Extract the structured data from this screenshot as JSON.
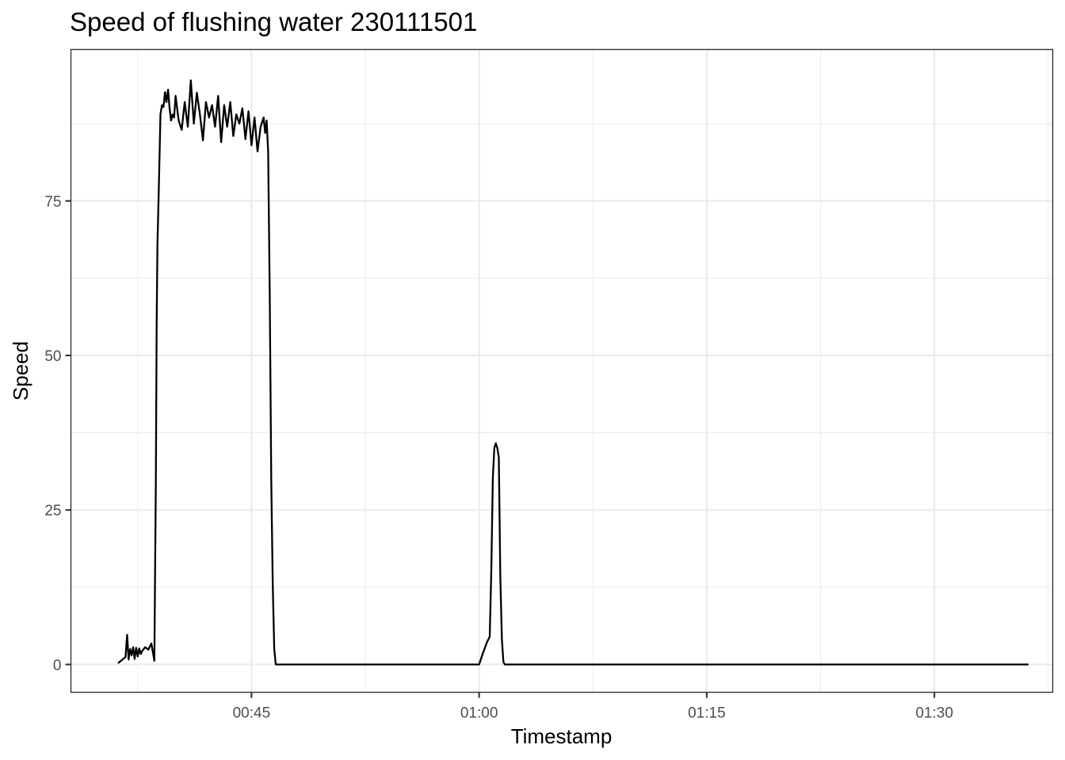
{
  "chart_data": {
    "type": "line",
    "title": "Speed of flushing water 230111501",
    "xlabel": "Timestamp",
    "ylabel": "Speed",
    "x_unit": "minutes since 00:00",
    "x_ticks": [
      {
        "value": 45,
        "label": "00:45"
      },
      {
        "value": 60,
        "label": "01:00"
      },
      {
        "value": 75,
        "label": "01:15"
      },
      {
        "value": 90,
        "label": "01:30"
      }
    ],
    "y_ticks": [
      {
        "value": 0,
        "label": "0"
      },
      {
        "value": 25,
        "label": "25"
      },
      {
        "value": 50,
        "label": "50"
      },
      {
        "value": 75,
        "label": "75"
      }
    ],
    "xlim": [
      33.1,
      97.8
    ],
    "ylim": [
      -4.5,
      99.5
    ],
    "grid": true,
    "legend": "none",
    "line_color": "#000000",
    "series": [
      {
        "x": [
          36.2,
          36.5,
          36.7,
          36.8,
          36.9,
          37.0,
          37.1,
          37.2,
          37.3,
          37.4,
          37.5,
          37.6,
          37.7,
          37.8,
          38.0,
          38.2,
          38.4,
          38.6,
          38.7,
          38.75,
          38.8,
          38.9,
          39.0,
          39.1,
          39.2,
          39.3,
          39.4,
          39.5,
          39.6,
          39.7,
          39.8,
          39.9,
          40.0,
          40.2,
          40.4,
          40.6,
          40.8,
          41.0,
          41.2,
          41.4,
          41.6,
          41.8,
          42.0,
          42.2,
          42.4,
          42.6,
          42.8,
          43.0,
          43.2,
          43.4,
          43.6,
          43.8,
          44.0,
          44.2,
          44.4,
          44.6,
          44.8,
          45.0,
          45.2,
          45.4,
          45.6,
          45.8,
          45.9,
          46.0,
          46.1,
          46.2,
          46.3,
          46.4,
          46.5,
          46.6,
          50.0,
          55.0,
          60.0,
          60.2,
          60.5,
          60.7,
          60.8,
          60.9,
          61.0,
          61.1,
          61.2,
          61.3,
          61.4,
          61.5,
          61.6,
          61.7,
          65.0,
          70.0,
          75.0,
          80.0,
          85.0,
          90.0,
          95.0,
          96.2
        ],
        "values": [
          0.2,
          0.8,
          1.2,
          4.8,
          0.8,
          2.5,
          1.5,
          2.8,
          0.9,
          2.7,
          1.3,
          2.6,
          1.7,
          2.2,
          2.8,
          2.4,
          3.4,
          0.6,
          30.0,
          55.0,
          68.0,
          78.0,
          89.0,
          90.5,
          90.2,
          92.6,
          91.0,
          93.0,
          90.0,
          88.0,
          89.0,
          88.5,
          92.0,
          88.0,
          86.5,
          91.0,
          87.0,
          94.5,
          87.5,
          92.5,
          89.0,
          84.8,
          91.0,
          88.5,
          90.5,
          87.0,
          92.0,
          84.5,
          90.5,
          87.0,
          91.0,
          85.5,
          89.0,
          87.5,
          90.0,
          85.0,
          89.5,
          84.0,
          88.5,
          83.0,
          87.0,
          88.5,
          86.0,
          88.0,
          83.0,
          60.0,
          30.0,
          13.0,
          2.5,
          0.0,
          0.0,
          0.0,
          0.0,
          1.5,
          3.5,
          4.5,
          15.0,
          30.0,
          35.0,
          35.8,
          35.0,
          33.5,
          14.0,
          4.0,
          0.4,
          0.0,
          0.0,
          0.0,
          0.0,
          0.0,
          0.0,
          0.0,
          0.0,
          0.0
        ]
      }
    ]
  }
}
